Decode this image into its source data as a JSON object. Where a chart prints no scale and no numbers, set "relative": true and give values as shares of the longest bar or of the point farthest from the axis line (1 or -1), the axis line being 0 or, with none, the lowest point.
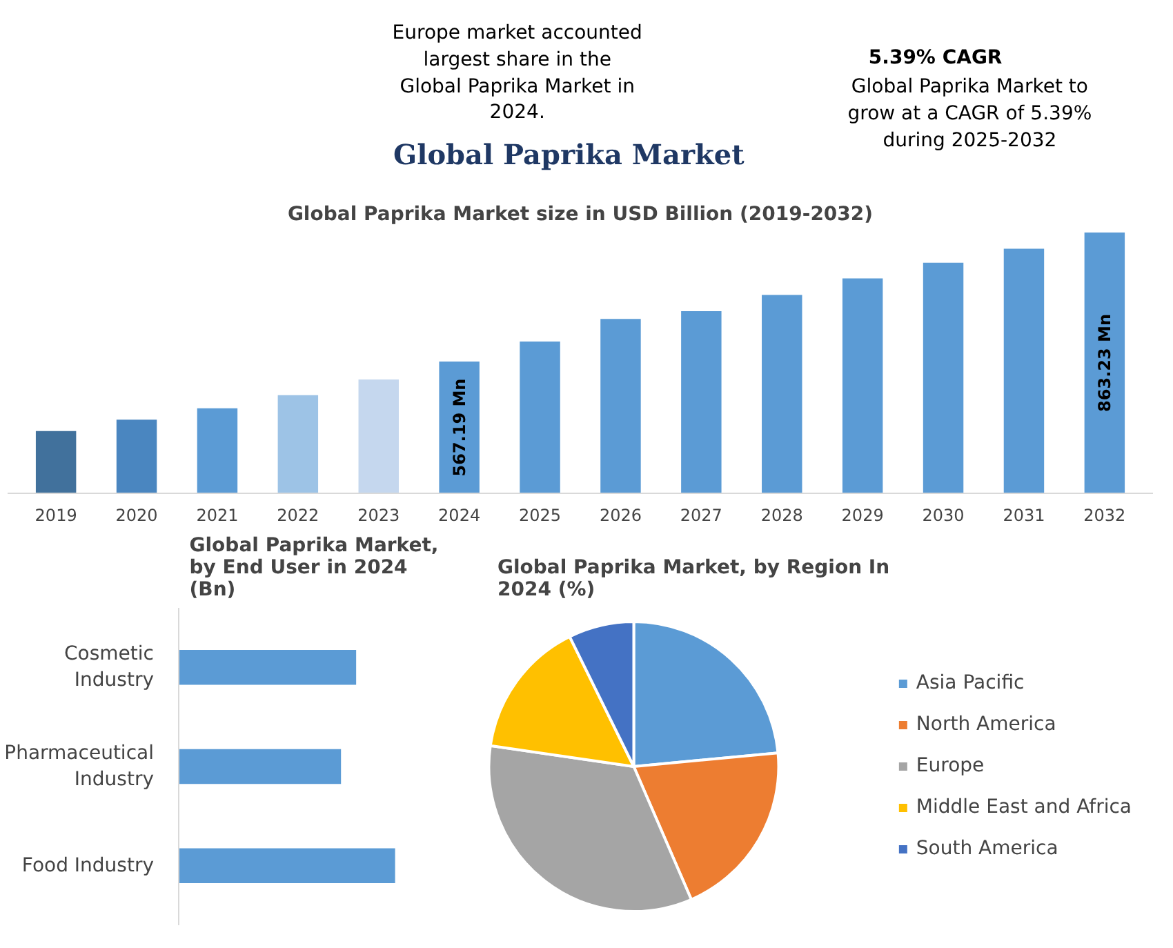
{
  "chart_data": [
    {
      "type": "other",
      "title": "Global Paprika Market",
      "annotations": [
        "Europe market accounted largest share in the Global Paprika Market in 2024.",
        "5.39% CAGR",
        "Global Paprika Market to grow at a CAGR of 5.39% during 2025-2032"
      ]
    },
    {
      "type": "bar",
      "title": "Global Paprika Market size in USD Billion (2019-2032)",
      "categories": [
        "2019",
        "2020",
        "2021",
        "2022",
        "2023",
        "2024",
        "2025",
        "2026",
        "2027",
        "2028",
        "2029",
        "2030",
        "2031",
        "2032"
      ],
      "values": [
        408,
        434,
        460,
        490,
        526,
        567.19,
        613,
        665,
        683,
        720,
        758,
        794,
        826,
        863.23
      ],
      "value_labels": [
        null,
        null,
        null,
        null,
        null,
        "567.19 Mn",
        null,
        null,
        null,
        null,
        null,
        null,
        null,
        "863.23 Mn"
      ],
      "colors": [
        "#41719c",
        "#4a86c0",
        "#5b9bd5",
        "#9dc3e6",
        "#c5d7ee",
        "#5b9bd5",
        "#5b9bd5",
        "#5b9bd5",
        "#5b9bd5",
        "#5b9bd5",
        "#5b9bd5",
        "#5b9bd5",
        "#5b9bd5",
        "#5b9bd5"
      ],
      "ylim": [
        265,
        863.23
      ],
      "tick_labels": "x"
    },
    {
      "type": "bar",
      "orientation": "horizontal",
      "relative": true,
      "title": "Global Paprika Market, by End User in 2024 (Bn)",
      "categories": [
        "Cosmetic Industry",
        "Pharmaceutical Industry",
        "Food Industry"
      ],
      "values": [
        0.82,
        0.75,
        1
      ],
      "color": "#5b9bd5"
    },
    {
      "type": "pie",
      "title": "Global Paprika Market, by Region In 2024 (%)",
      "categories": [
        "Asia Pacific",
        "North America",
        "Europe",
        "Middle East and Africa",
        "South America"
      ],
      "values": [
        23.5,
        20,
        33.8,
        15.4,
        7.3
      ],
      "colors": [
        "#5b9bd5",
        "#ed7d31",
        "#a5a5a5",
        "#ffc000",
        "#4472c4"
      ],
      "legend": "right"
    }
  ]
}
